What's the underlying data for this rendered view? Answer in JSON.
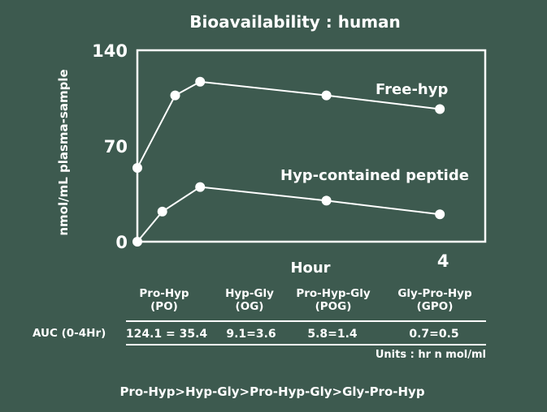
{
  "chart_data": {
    "type": "line",
    "title": "Bioavailability : human",
    "xlabel": "Hour",
    "ylabel": "nmol/mL plasma-sample",
    "ylim": [
      0,
      140
    ],
    "xlim": [
      0,
      4.6
    ],
    "yticks": [
      "140",
      "70",
      "0"
    ],
    "ytick_values": [
      140,
      70,
      0
    ],
    "xticks": [
      "4"
    ],
    "xtick_values": [
      4
    ],
    "series": [
      {
        "name": "Free-hyp",
        "x": [
          0,
          0.5,
          0.83,
          2.5,
          4
        ],
        "y": [
          54,
          107,
          117,
          107,
          97
        ]
      },
      {
        "name": "Hyp-contained peptide",
        "x": [
          0,
          0.33,
          0.83,
          2.5,
          4
        ],
        "y": [
          0,
          22,
          40,
          30,
          20
        ]
      }
    ],
    "grid": false,
    "colors": {
      "background": "#3d5a4f",
      "foreground": "#ffffff"
    }
  },
  "table": {
    "columns": [
      {
        "name": "Pro-Hyp",
        "abbr": "(PO)"
      },
      {
        "name": "Hyp-Gly",
        "abbr": "(OG)"
      },
      {
        "name": "Pro-Hyp-Gly",
        "abbr": "(POG)"
      },
      {
        "name": "Gly-Pro-Hyp",
        "abbr": "(GPO)"
      }
    ],
    "row_label": "AUC (0-4Hr)",
    "values": [
      "124.1 = 35.4",
      "9.1=3.6",
      "5.8=1.4",
      "0.7=0.5"
    ],
    "units": "Units : hr n mol/ml"
  },
  "footer": "Pro-Hyp>Hyp-Gly>Pro-Hyp-Gly>Gly-Pro-Hyp"
}
